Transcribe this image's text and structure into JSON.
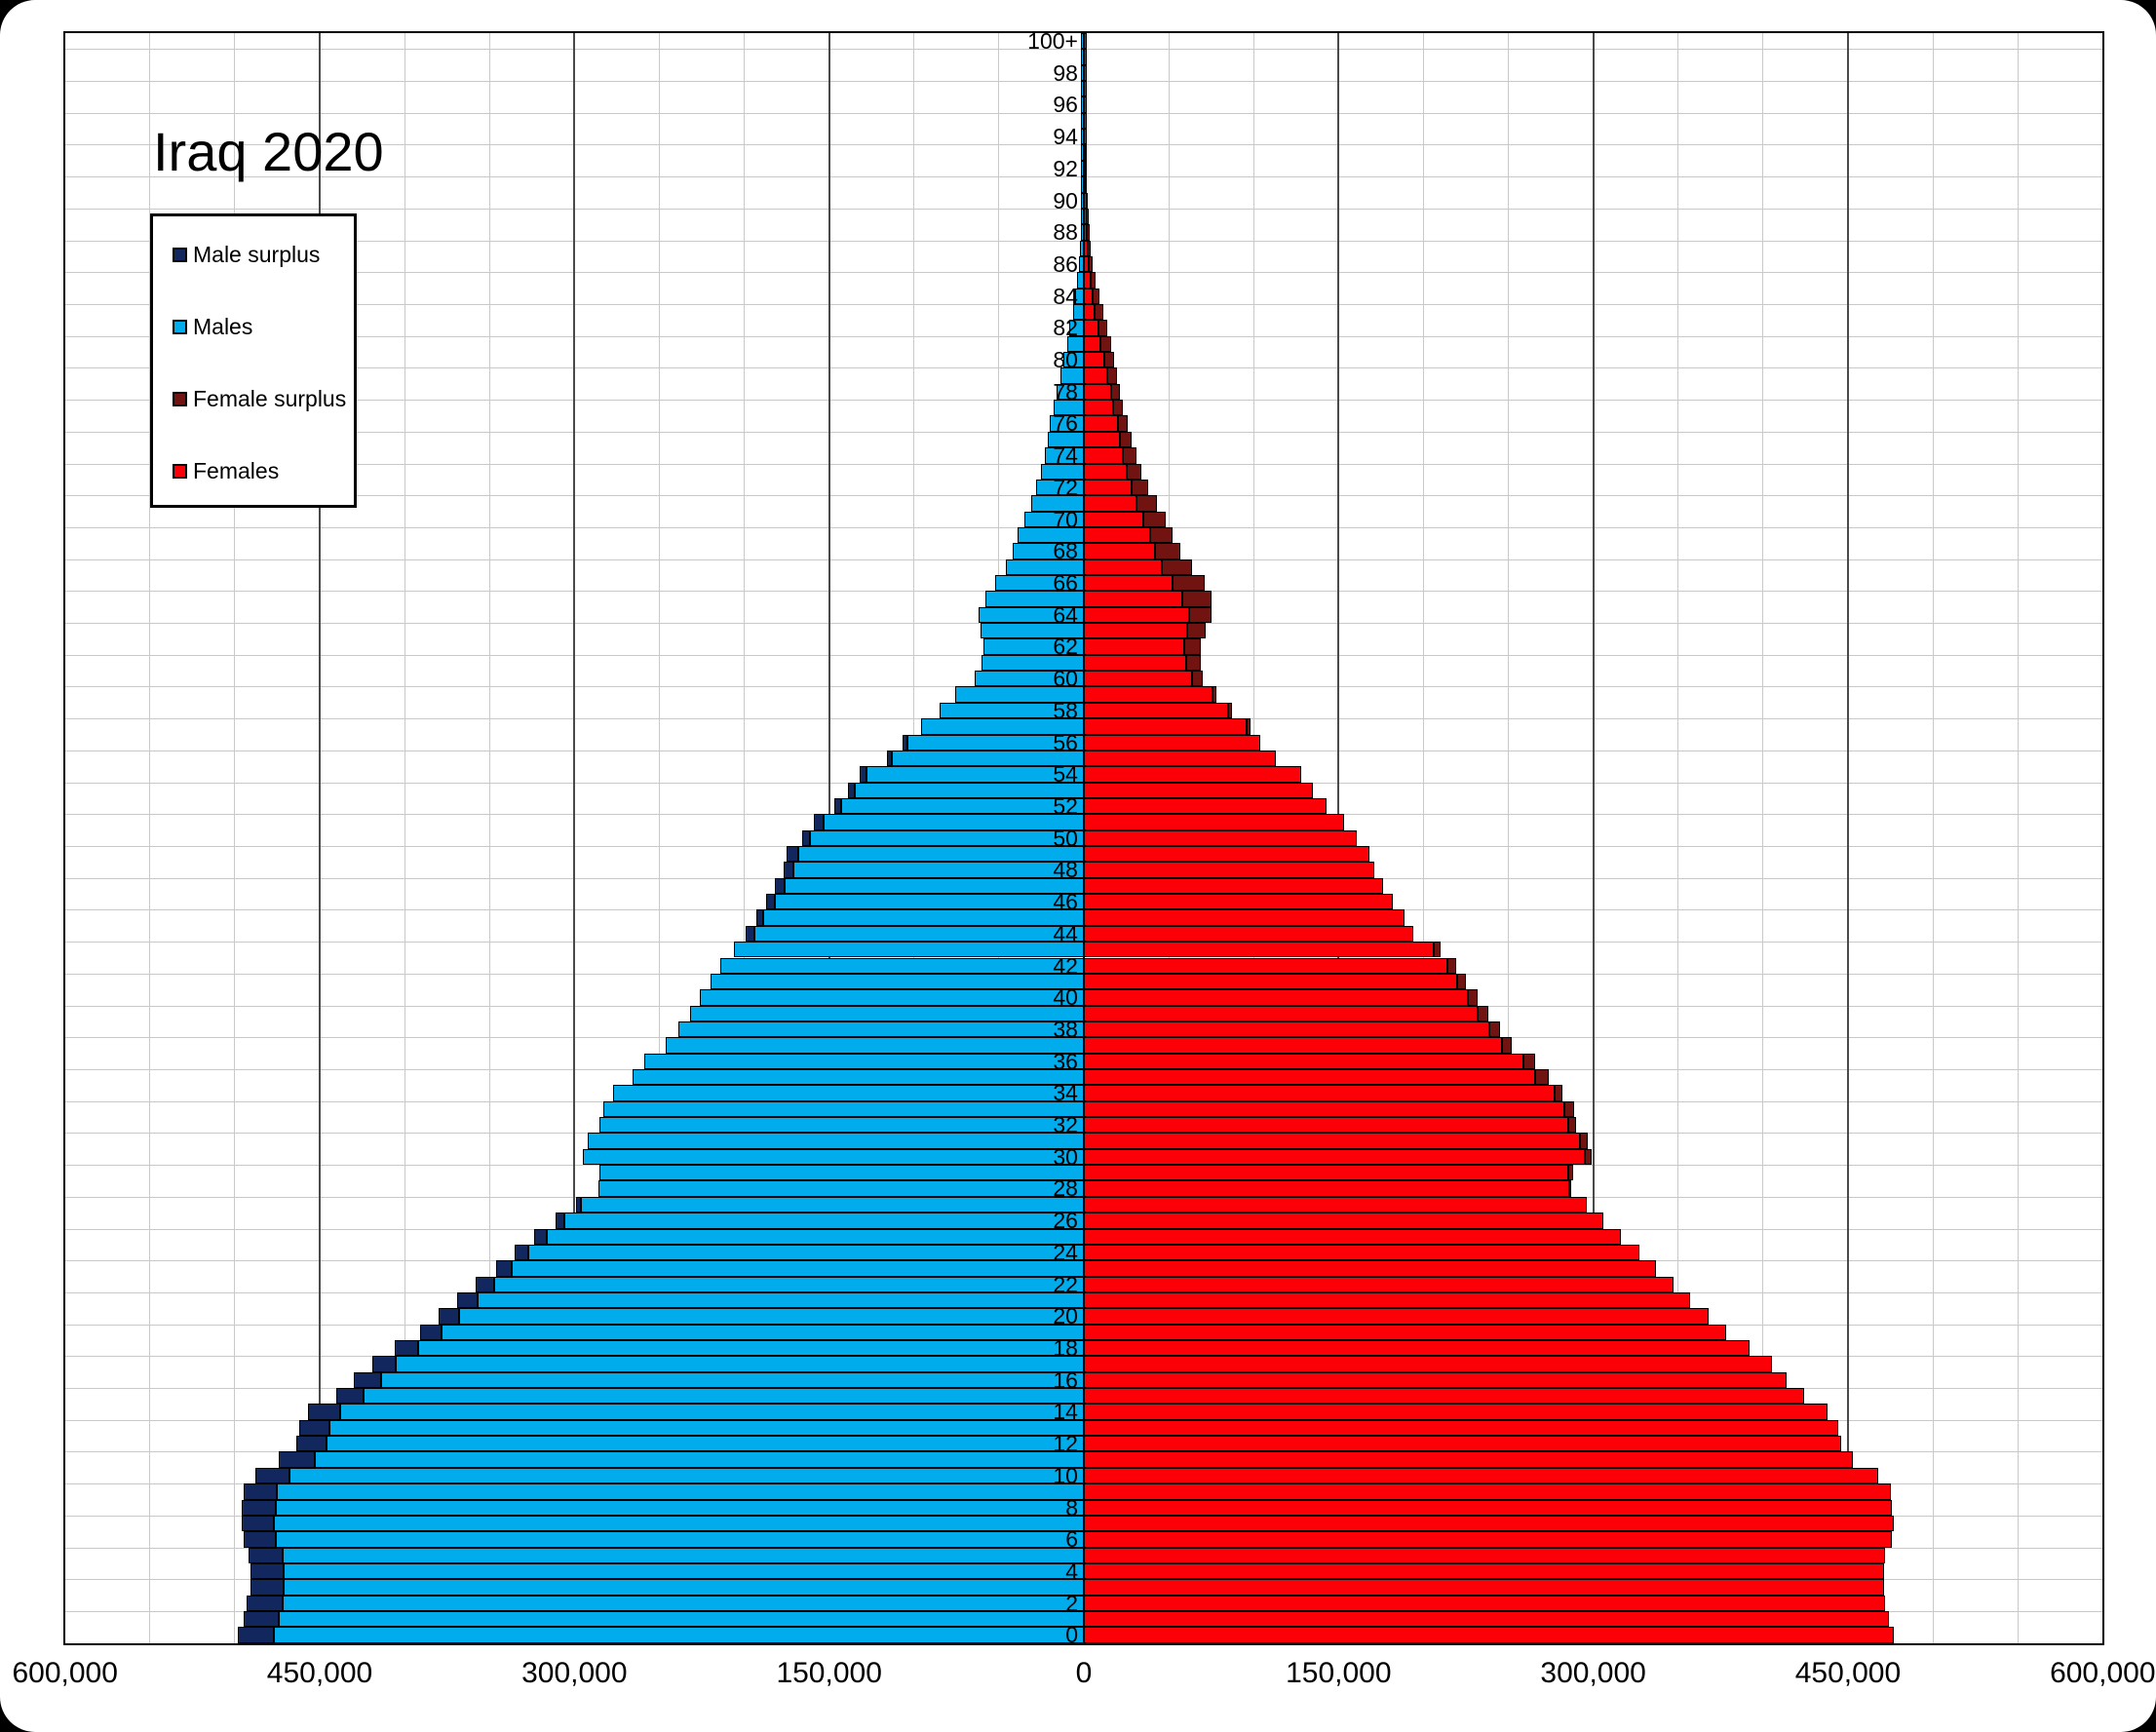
{
  "title": "Iraq 2020",
  "colors": {
    "male_surplus": "#12275E",
    "males": "#00ACEC",
    "female_surplus": "#701311",
    "females": "#FB0006",
    "grid_minor": "#c9c9c9",
    "grid_major": "#4a4a4a",
    "axis": "#000000"
  },
  "legend": [
    {
      "label": "Male surplus",
      "color_key": "male_surplus"
    },
    {
      "label": "Males",
      "color_key": "males"
    },
    {
      "label": "Female surplus",
      "color_key": "female_surplus"
    },
    {
      "label": "Females",
      "color_key": "females"
    }
  ],
  "x_axis": {
    "max": 600000,
    "minor_gridline_step": 50000,
    "major_gridline_step": 150000,
    "ticks": [
      {
        "label": "600,000",
        "v": -600000
      },
      {
        "label": "450,000",
        "v": -450000
      },
      {
        "label": "300,000",
        "v": -300000
      },
      {
        "label": "150,000",
        "v": -150000
      },
      {
        "label": "0",
        "v": 0
      },
      {
        "label": "150,000",
        "v": 150000
      },
      {
        "label": "300,000",
        "v": 300000
      },
      {
        "label": "450,000",
        "v": 450000
      },
      {
        "label": "600,000",
        "v": 600000
      }
    ]
  },
  "y_axis": {
    "label_step": 2,
    "labels": [
      "0",
      "2",
      "4",
      "6",
      "8",
      "10",
      "12",
      "14",
      "16",
      "18",
      "20",
      "22",
      "24",
      "26",
      "28",
      "30",
      "32",
      "34",
      "36",
      "38",
      "40",
      "42",
      "44",
      "46",
      "48",
      "50",
      "52",
      "54",
      "56",
      "58",
      "60",
      "62",
      "64",
      "66",
      "68",
      "70",
      "72",
      "74",
      "76",
      "78",
      "80",
      "82",
      "84",
      "86",
      "88",
      "90",
      "92",
      "94",
      "96",
      "98",
      "100+"
    ]
  },
  "chart_data": {
    "type": "bar",
    "subtype": "population_pyramid",
    "title": "Iraq 2020",
    "age_min": 0,
    "age_max_label": "100+",
    "xlim": [
      -600000,
      600000
    ],
    "grid": true,
    "legend_position": "upper-left-inside",
    "series": [
      {
        "name": "Males",
        "side": "left",
        "values": [
          498000,
          495000,
          493000,
          491000,
          491000,
          492000,
          495000,
          496000,
          496000,
          495000,
          488000,
          474000,
          464000,
          462000,
          457000,
          440000,
          430000,
          419000,
          406000,
          391000,
          380000,
          369000,
          358000,
          346000,
          335000,
          324000,
          311000,
          299000,
          286000,
          285000,
          295000,
          292000,
          285000,
          283000,
          277000,
          266000,
          259000,
          246000,
          239000,
          232000,
          226000,
          220000,
          214000,
          206000,
          199000,
          193000,
          187000,
          182000,
          177000,
          175000,
          166000,
          159000,
          147000,
          139000,
          132000,
          116000,
          107000,
          96000,
          85000,
          76000,
          64000,
          60000,
          59000,
          61000,
          62000,
          58000,
          52000,
          46000,
          42000,
          39000,
          35000,
          31000,
          28000,
          25000,
          23000,
          21000,
          20000,
          17500,
          16000,
          13500,
          12000,
          10000,
          8800,
          6500,
          5100,
          4000,
          2700,
          2100,
          1700,
          1300,
          1000,
          750,
          550,
          400,
          280,
          200,
          130,
          90,
          60,
          40,
          50
        ]
      },
      {
        "name": "Females",
        "side": "right",
        "values": [
          477000,
          474000,
          472000,
          471000,
          471000,
          472000,
          476000,
          477000,
          476000,
          475000,
          468000,
          453000,
          446000,
          444000,
          438000,
          424000,
          414000,
          405000,
          392000,
          378000,
          368000,
          357000,
          347000,
          337000,
          327000,
          316000,
          306000,
          296000,
          287000,
          288000,
          299000,
          297000,
          290000,
          289000,
          282000,
          274000,
          266000,
          252000,
          245000,
          238000,
          232000,
          225000,
          219000,
          210000,
          194000,
          189000,
          182000,
          176000,
          171000,
          168000,
          161000,
          153000,
          143000,
          135000,
          128000,
          113000,
          104000,
          98000,
          87000,
          78000,
          70000,
          69000,
          69000,
          72000,
          75000,
          75000,
          71000,
          64000,
          57000,
          52000,
          48000,
          43000,
          38000,
          34000,
          31000,
          28000,
          26000,
          23000,
          21000,
          19500,
          18000,
          16000,
          14000,
          11500,
          9000,
          7000,
          5100,
          4200,
          3400,
          2700,
          2200,
          1700,
          1300,
          1000,
          750,
          550,
          400,
          280,
          190,
          130,
          150
        ]
      }
    ],
    "derived_series_note": "Male surplus = max(0, males-females) drawn dark navy at left bar tip; Female surplus = max(0, females-males) drawn dark maroon at right bar tip"
  }
}
